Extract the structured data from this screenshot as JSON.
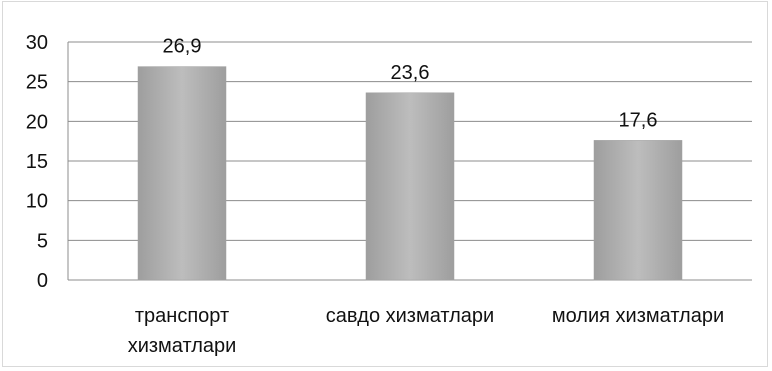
{
  "chart_data": {
    "type": "bar",
    "categories": [
      "транспорт хизматлари",
      "савдо хизматлари",
      "молия хизматлари"
    ],
    "category_lines": [
      [
        "транспорт",
        "хизматлари"
      ],
      [
        "савдо хизматлари"
      ],
      [
        "молия хизматлари"
      ]
    ],
    "values": [
      26.9,
      23.6,
      17.6
    ],
    "data_labels": [
      "26,9",
      "23,6",
      "17,6"
    ],
    "title": "",
    "xlabel": "",
    "ylabel": "",
    "ylim": [
      0,
      30
    ],
    "yticks": [
      0,
      5,
      10,
      15,
      20,
      25,
      30
    ],
    "grid": true,
    "legend": "none",
    "colors": {
      "bar": "#a6a6a6",
      "bar_light": "#bdbdbd",
      "grid": "#8c8c8c",
      "axis": "#595959"
    }
  }
}
